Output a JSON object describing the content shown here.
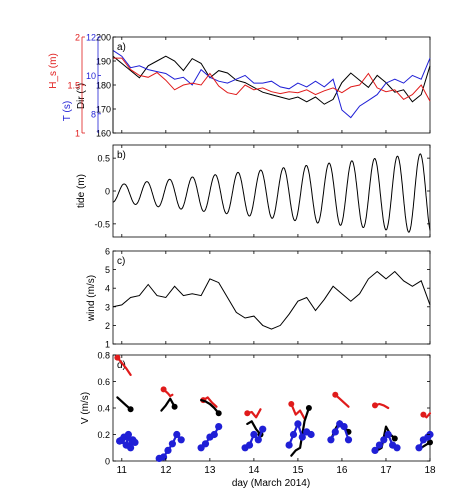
{
  "figure": {
    "xlabel": "day (March 2014)"
  },
  "chart_data": [
    {
      "panel": "a)",
      "type": "line",
      "xlim": [
        10.8,
        18
      ],
      "x_ticks": [
        11,
        12,
        13,
        14,
        15,
        16,
        17,
        18
      ],
      "axes": [
        {
          "label": "Dir (°)",
          "color": "#000000",
          "lim": [
            160,
            200
          ],
          "ticks": [
            "160",
            "170",
            "180",
            "190",
            "200"
          ]
        },
        {
          "label": "T (s)",
          "color": "#1f1fd6",
          "lim": [
            7,
            12
          ],
          "ticks": [
            "8",
            "10",
            "12"
          ]
        },
        {
          "label": "H_s (m)",
          "color": "#e01b1b",
          "lim": [
            1,
            2
          ],
          "ticks": [
            "1",
            "1.5",
            "2"
          ]
        }
      ],
      "series": [
        {
          "name": "Dir",
          "color": "#000000",
          "x": [
            10.8,
            11.0,
            11.2,
            11.4,
            11.6,
            11.8,
            12.0,
            12.2,
            12.4,
            12.6,
            12.8,
            13.0,
            13.2,
            13.4,
            13.6,
            13.8,
            14.0,
            14.2,
            14.4,
            14.6,
            14.8,
            15.0,
            15.2,
            15.4,
            15.6,
            15.8,
            16.0,
            16.2,
            16.4,
            16.6,
            16.8,
            17.0,
            17.2,
            17.4,
            17.6,
            17.8,
            18.0
          ],
          "y": [
            192,
            189,
            186,
            183,
            188,
            190,
            192,
            190,
            186,
            191,
            189,
            183,
            186,
            185,
            182,
            181,
            179,
            177,
            176,
            175,
            174,
            175,
            173,
            175,
            172,
            174,
            181,
            185,
            182,
            179,
            184,
            181,
            177,
            178,
            173,
            176,
            188
          ]
        },
        {
          "name": "T",
          "color": "#1f1fd6",
          "x": [
            10.8,
            11.0,
            11.2,
            11.4,
            11.6,
            11.8,
            12.0,
            12.2,
            12.4,
            12.6,
            12.8,
            13.0,
            13.2,
            13.4,
            13.6,
            13.8,
            14.0,
            14.2,
            14.4,
            14.6,
            14.8,
            15.0,
            15.2,
            15.4,
            15.6,
            15.8,
            16.0,
            16.2,
            16.4,
            16.6,
            16.8,
            17.0,
            17.2,
            17.4,
            17.6,
            17.8,
            18.0
          ],
          "y": [
            11.3,
            11.0,
            10.4,
            10.5,
            10.3,
            10.2,
            10.1,
            9.8,
            9.9,
            9.5,
            10.3,
            9.9,
            9.7,
            9.6,
            9.8,
            10.0,
            9.6,
            9.6,
            9.7,
            9.4,
            9.3,
            9.6,
            9.4,
            9.7,
            9.4,
            9.8,
            8.2,
            7.8,
            8.4,
            8.7,
            9.0,
            9.6,
            9.8,
            9.6,
            10.0,
            9.8,
            10.9
          ]
        },
        {
          "name": "Hs",
          "color": "#e01b1b",
          "x": [
            10.8,
            11.0,
            11.2,
            11.4,
            11.6,
            11.8,
            12.0,
            12.2,
            12.4,
            12.6,
            12.8,
            13.0,
            13.2,
            13.4,
            13.6,
            13.8,
            14.0,
            14.2,
            14.4,
            14.6,
            14.8,
            15.0,
            15.2,
            15.4,
            15.6,
            15.8,
            16.0,
            16.2,
            16.4,
            16.6,
            16.8,
            17.0,
            17.2,
            17.4,
            17.6,
            17.8,
            18.0
          ],
          "y": [
            1.78,
            1.78,
            1.66,
            1.6,
            1.58,
            1.63,
            1.55,
            1.45,
            1.5,
            1.52,
            1.5,
            1.62,
            1.49,
            1.42,
            1.4,
            1.5,
            1.45,
            1.47,
            1.43,
            1.41,
            1.43,
            1.42,
            1.45,
            1.4,
            1.44,
            1.47,
            1.42,
            1.48,
            1.5,
            1.62,
            1.47,
            1.43,
            1.45,
            1.35,
            1.4,
            1.5,
            1.33
          ]
        }
      ]
    },
    {
      "panel": "b)",
      "type": "line",
      "ylabel": "tide (m)",
      "xlim": [
        10.8,
        18
      ],
      "ylim": [
        -0.7,
        0.7
      ],
      "y_ticks": [
        "-0.5",
        "0",
        "0.5"
      ],
      "series": [
        {
          "name": "tide",
          "color": "#000000",
          "model": "semidiurnal",
          "x_start": 10.8,
          "x_end": 18,
          "period_days": 0.5175,
          "phase_day": 11.05,
          "amplitude_start": 0.13,
          "amplitude_end": 0.62,
          "mean": -0.04
        }
      ]
    },
    {
      "panel": "c)",
      "type": "line",
      "ylabel": "wind (m/s)",
      "xlim": [
        10.8,
        18
      ],
      "ylim": [
        1,
        6
      ],
      "y_ticks": [
        "1",
        "2",
        "3",
        "4",
        "5",
        "6"
      ],
      "series": [
        {
          "name": "wind",
          "color": "#000000",
          "x": [
            10.8,
            11.0,
            11.2,
            11.4,
            11.6,
            11.8,
            12.0,
            12.2,
            12.4,
            12.6,
            12.8,
            13.0,
            13.2,
            13.4,
            13.6,
            13.8,
            14.0,
            14.2,
            14.4,
            14.6,
            14.8,
            15.0,
            15.2,
            15.4,
            15.6,
            15.8,
            16.0,
            16.2,
            16.4,
            16.6,
            16.8,
            17.0,
            17.2,
            17.4,
            17.6,
            17.8,
            18.0
          ],
          "y": [
            3.0,
            3.1,
            3.5,
            3.6,
            4.2,
            3.6,
            3.5,
            4.1,
            3.6,
            3.7,
            3.6,
            4.5,
            4.3,
            3.5,
            2.7,
            2.4,
            2.5,
            2.0,
            1.8,
            2.0,
            2.6,
            3.3,
            3.5,
            2.8,
            3.4,
            4.1,
            3.7,
            3.3,
            3.7,
            4.5,
            4.9,
            4.5,
            4.9,
            4.4,
            4.1,
            4.4,
            3.1
          ]
        }
      ]
    },
    {
      "panel": "d)",
      "type": "scatter",
      "ylabel": "V (m/s)",
      "xlim": [
        10.8,
        18
      ],
      "ylim": [
        0,
        0.8
      ],
      "y_ticks": [
        "0",
        "0.2",
        "0.4",
        "0.6",
        "0.8"
      ],
      "tracks": [
        {
          "color": "#e01b1b",
          "x": [
            10.9,
            11.0,
            11.1,
            11.2
          ],
          "y": [
            0.78,
            0.74,
            0.7,
            0.65
          ]
        },
        {
          "color": "#000000",
          "x": [
            10.9,
            11.0,
            11.1,
            11.2
          ],
          "y": [
            0.48,
            0.45,
            0.42,
            0.39
          ]
        },
        {
          "color": "#1f1fd6",
          "x": [
            11.05,
            11.0,
            10.95,
            11.1,
            11.15,
            11.2,
            11.25,
            11.3
          ],
          "y": [
            0.18,
            0.16,
            0.15,
            0.12,
            0.2,
            0.1,
            0.16,
            0.14
          ]
        },
        {
          "color": "#e01b1b",
          "x": [
            11.95,
            12.05,
            12.1,
            12.15
          ],
          "y": [
            0.54,
            0.51,
            0.49,
            0.5
          ]
        },
        {
          "color": "#000000",
          "x": [
            11.9,
            12.0,
            12.1,
            12.2
          ],
          "y": [
            0.38,
            0.42,
            0.47,
            0.41
          ]
        },
        {
          "color": "#1f1fd6",
          "x": [
            11.85,
            11.95,
            12.05,
            12.15,
            12.25,
            12.35
          ],
          "y": [
            0.02,
            0.03,
            0.08,
            0.13,
            0.2,
            0.16
          ]
        },
        {
          "color": "#e01b1b",
          "x": [
            12.85,
            12.95,
            13.05,
            13.15
          ],
          "y": [
            0.46,
            0.48,
            0.44,
            0.41
          ]
        },
        {
          "color": "#000000",
          "x": [
            12.8,
            12.9,
            13.0,
            13.1,
            13.2
          ],
          "y": [
            0.46,
            0.45,
            0.43,
            0.4,
            0.36
          ]
        },
        {
          "color": "#1f1fd6",
          "x": [
            12.8,
            12.9,
            13.0,
            13.1,
            13.2
          ],
          "y": [
            0.1,
            0.13,
            0.18,
            0.2,
            0.26
          ]
        },
        {
          "color": "#e01b1b",
          "x": [
            13.85,
            13.95,
            14.05,
            14.15
          ],
          "y": [
            0.36,
            0.37,
            0.33,
            0.39
          ]
        },
        {
          "color": "#000000",
          "x": [
            13.85,
            13.95,
            14.05,
            14.15
          ],
          "y": [
            0.28,
            0.3,
            0.24,
            0.2
          ]
        },
        {
          "color": "#1f1fd6",
          "x": [
            13.8,
            13.9,
            14.0,
            14.1,
            14.2
          ],
          "y": [
            0.1,
            0.12,
            0.2,
            0.16,
            0.24
          ]
        },
        {
          "color": "#e01b1b",
          "x": [
            14.85,
            14.95,
            15.05,
            15.15
          ],
          "y": [
            0.43,
            0.35,
            0.38,
            0.32
          ]
        },
        {
          "color": "#000000",
          "x": [
            14.85,
            14.95,
            15.05,
            15.15,
            15.25
          ],
          "y": [
            0.04,
            0.08,
            0.1,
            0.3,
            0.4
          ]
        },
        {
          "color": "#1f1fd6",
          "x": [
            14.8,
            14.9,
            15.0,
            15.1,
            15.2,
            15.3
          ],
          "y": [
            0.12,
            0.2,
            0.28,
            0.18,
            0.22,
            0.2
          ]
        },
        {
          "color": "#e01b1b",
          "x": [
            15.85,
            15.95,
            16.05,
            16.15
          ],
          "y": [
            0.5,
            0.47,
            0.44,
            0.41
          ]
        },
        {
          "color": "#000000",
          "x": [
            15.75,
            15.85,
            15.95,
            16.05,
            16.15
          ],
          "y": [
            0.16,
            0.24,
            0.3,
            0.26,
            0.22
          ]
        },
        {
          "color": "#1f1fd6",
          "x": [
            15.75,
            15.85,
            15.95,
            16.05,
            16.15
          ],
          "y": [
            0.16,
            0.22,
            0.28,
            0.26,
            0.16
          ]
        },
        {
          "color": "#e01b1b",
          "x": [
            16.75,
            16.85,
            16.95,
            17.05
          ],
          "y": [
            0.42,
            0.43,
            0.42,
            0.4
          ]
        },
        {
          "color": "#000000",
          "x": [
            16.8,
            16.9,
            17.0,
            17.1,
            17.2
          ],
          "y": [
            0.08,
            0.1,
            0.26,
            0.2,
            0.17
          ]
        },
        {
          "color": "#1f1fd6",
          "x": [
            16.75,
            16.85,
            16.95,
            17.05,
            17.15,
            17.25
          ],
          "y": [
            0.08,
            0.12,
            0.16,
            0.2,
            0.12,
            0.1
          ]
        },
        {
          "color": "#e01b1b",
          "x": [
            17.85,
            17.92,
            18.0
          ],
          "y": [
            0.35,
            0.33,
            0.36
          ]
        },
        {
          "color": "#000000",
          "x": [
            17.8,
            17.9,
            18.0
          ],
          "y": [
            0.1,
            0.12,
            0.14
          ]
        },
        {
          "color": "#1f1fd6",
          "x": [
            17.75,
            17.85,
            17.95,
            18.0
          ],
          "y": [
            0.1,
            0.16,
            0.18,
            0.2
          ]
        }
      ]
    }
  ]
}
